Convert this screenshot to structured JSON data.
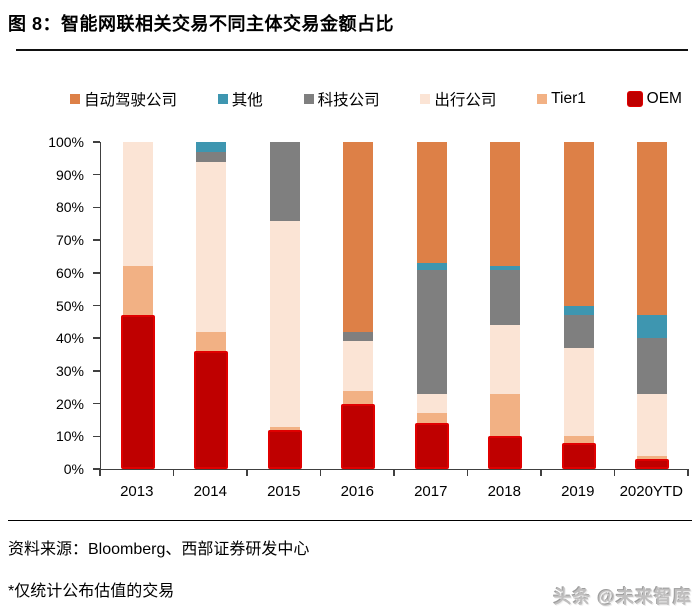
{
  "header": {
    "title": "图 8：智能网联相关交易不同主体交易金额占比"
  },
  "legend": {
    "items": [
      {
        "label": "自动驾驶公司",
        "color": "#dd8047"
      },
      {
        "label": "其他",
        "color": "#3e96b0"
      },
      {
        "label": "科技公司",
        "color": "#7f7f7f"
      },
      {
        "label": "出行公司",
        "color": "#fbe4d5"
      },
      {
        "label": "Tier1",
        "color": "#f2b184"
      },
      {
        "label": "OEM",
        "color": "#bf0000",
        "border_color": "#e00000",
        "big": true
      }
    ]
  },
  "chart_data": {
    "type": "bar",
    "stacked": true,
    "title": "智能网联相关交易不同主体交易金额占比",
    "unit": "%",
    "grid": false,
    "legend_position": "top",
    "ylim": [
      0,
      100
    ],
    "y_ticks": [
      "100%",
      "90%",
      "80%",
      "70%",
      "60%",
      "50%",
      "40%",
      "30%",
      "20%",
      "10%",
      "0%"
    ],
    "categories": [
      "2013",
      "2014",
      "2015",
      "2016",
      "2017",
      "2018",
      "2019",
      "2020YTD"
    ],
    "series": [
      {
        "name": "OEM",
        "color": "#bf0000",
        "border_color": "#e00000",
        "values": [
          47,
          36,
          12,
          20,
          14,
          10,
          8,
          3
        ]
      },
      {
        "name": "Tier1",
        "color": "#f2b184",
        "values": [
          15,
          6,
          1,
          4,
          3,
          13,
          2,
          1
        ]
      },
      {
        "name": "出行公司",
        "color": "#fbe4d5",
        "values": [
          38,
          52,
          63,
          15,
          6,
          21,
          27,
          19
        ]
      },
      {
        "name": "科技公司",
        "color": "#7f7f7f",
        "values": [
          0,
          3,
          24,
          3,
          38,
          17,
          10,
          17
        ]
      },
      {
        "name": "其他",
        "color": "#3e96b0",
        "values": [
          0,
          3,
          0,
          0,
          2,
          1,
          3,
          7
        ]
      },
      {
        "name": "自动驾驶公司",
        "color": "#dd8047",
        "values": [
          0,
          0,
          0,
          58,
          37,
          38,
          50,
          53
        ]
      }
    ]
  },
  "footer": {
    "source": "资料来源：Bloomberg、西部证券研发中心",
    "note": "*仅统计公布估值的交易",
    "watermark": "头条 @未来智库"
  }
}
